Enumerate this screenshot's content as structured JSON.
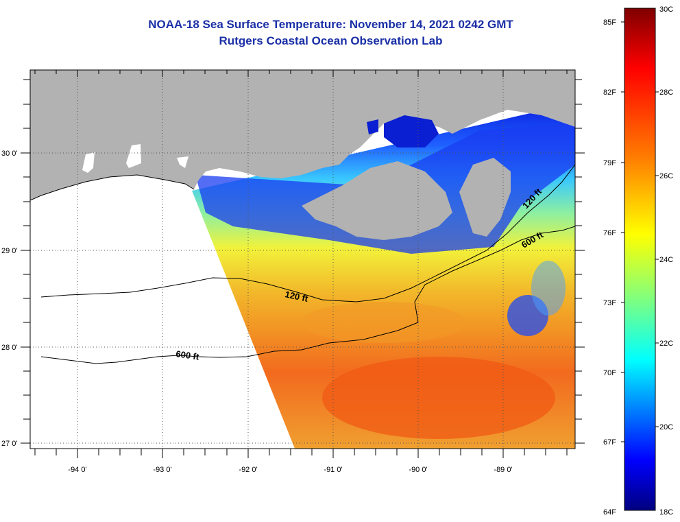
{
  "title_line1": "NOAA-18 Sea Surface Temperature:  November 14, 2021 0242 GMT",
  "title_line2": "Rutgers Coastal Ocean Observation Lab",
  "lon_labels": [
    "-94 0'",
    "-93 0'",
    "-92 0'",
    "-91 0'",
    "-90 0'",
    "-89 0'"
  ],
  "lat_labels": [
    "30 0'",
    "29 0'",
    "28 0'",
    "27 0'"
  ],
  "isobath_labels": [
    "120 ft",
    "600 ft",
    "120 ft",
    "600 ft"
  ],
  "colorbar": {
    "fahrenheit": [
      "85F",
      "82F",
      "79F",
      "76F",
      "73F",
      "70F",
      "67F",
      "64F"
    ],
    "celsius": [
      "30C",
      "28C",
      "26C",
      "24C",
      "22C",
      "20C",
      "18C"
    ],
    "range_c": [
      18,
      30
    ]
  },
  "colors": {
    "title": "#1a2fa6",
    "land": "#b2b2b2",
    "no_data": "#ffffff",
    "palette": [
      "#00007f",
      "#0000ff",
      "#007fff",
      "#00ffff",
      "#7fff7f",
      "#ffff00",
      "#ff7f00",
      "#ff0000",
      "#7f0000"
    ]
  }
}
